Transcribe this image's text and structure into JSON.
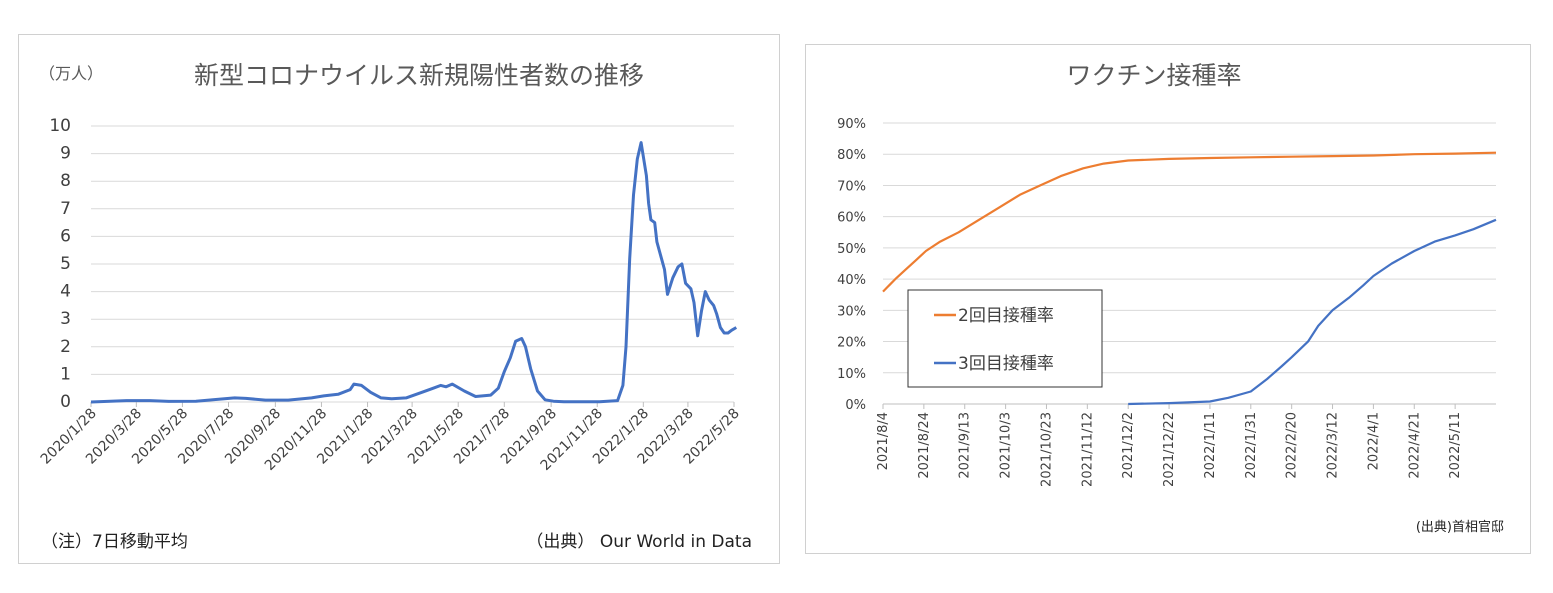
{
  "colors": {
    "blue": "#4472c4",
    "orange": "#ed7d31",
    "grid": "#d9d9d9",
    "text": "#595959"
  },
  "left_chart": {
    "unit_label": "（万人）",
    "note": "（注）7日移動平均",
    "source": "（出典） Our World in Data"
  },
  "right_chart": {
    "source": "(出典)首相官邸"
  },
  "chart_data": [
    {
      "type": "line",
      "title": "新型コロナウイルス新規陽性者数の推移",
      "xlabel": "",
      "ylabel": "（万人）",
      "ylim": [
        0,
        10
      ],
      "yticks": [
        "0",
        "1",
        "2",
        "3",
        "4",
        "5",
        "6",
        "7",
        "8",
        "9",
        "10"
      ],
      "xticks": [
        "2020/1/28",
        "2020/3/28",
        "2020/5/28",
        "2020/7/28",
        "2020/9/28",
        "2020/11/28",
        "2021/1/28",
        "2021/3/28",
        "2021/5/28",
        "2021/7/28",
        "2021/9/28",
        "2021/11/28",
        "2022/1/28",
        "2022/3/28",
        "2022/5/28"
      ],
      "grid": true,
      "series": [
        {
          "color": "#4472c4",
          "x": [
            "2020/1/28",
            "2020/3/15",
            "2020/4/15",
            "2020/5/10",
            "2020/6/15",
            "2020/7/15",
            "2020/8/5",
            "2020/8/20",
            "2020/9/15",
            "2020/10/15",
            "2020/11/15",
            "2020/12/1",
            "2020/12/20",
            "2021/1/5",
            "2021/1/10",
            "2021/1/20",
            "2021/2/1",
            "2021/2/15",
            "2021/3/1",
            "2021/3/20",
            "2021/4/10",
            "2021/4/25",
            "2021/5/5",
            "2021/5/12",
            "2021/5/20",
            "2021/6/5",
            "2021/6/20",
            "2021/7/10",
            "2021/7/20",
            "2021/7/28",
            "2021/8/5",
            "2021/8/12",
            "2021/8/20",
            "2021/8/25",
            "2021/9/1",
            "2021/9/10",
            "2021/9/20",
            "2021/10/1",
            "2021/10/15",
            "2021/11/1",
            "2021/12/1",
            "2021/12/25",
            "2022/1/1",
            "2022/1/5",
            "2022/1/10",
            "2022/1/15",
            "2022/1/20",
            "2022/1/25",
            "2022/2/1",
            "2022/2/4",
            "2022/2/7",
            "2022/2/12",
            "2022/2/15",
            "2022/2/20",
            "2022/2/25",
            "2022/3/1",
            "2022/3/8",
            "2022/3/15",
            "2022/3/20",
            "2022/3/25",
            "2022/4/1",
            "2022/4/5",
            "2022/4/10",
            "2022/4/15",
            "2022/4/20",
            "2022/4/25",
            "2022/5/1",
            "2022/5/5",
            "2022/5/10",
            "2022/5/15",
            "2022/5/20",
            "2022/5/25",
            "2022/5/31"
          ],
          "values": [
            0,
            0.05,
            0.05,
            0.02,
            0.03,
            0.1,
            0.15,
            0.13,
            0.07,
            0.07,
            0.15,
            0.22,
            0.28,
            0.45,
            0.65,
            0.6,
            0.35,
            0.15,
            0.12,
            0.15,
            0.35,
            0.5,
            0.6,
            0.55,
            0.65,
            0.4,
            0.2,
            0.25,
            0.5,
            1.1,
            1.6,
            2.2,
            2.3,
            2.0,
            1.2,
            0.4,
            0.08,
            0.03,
            0.01,
            0.01,
            0.01,
            0.05,
            0.6,
            2.0,
            5.2,
            7.5,
            8.8,
            9.4,
            8.2,
            7.2,
            6.6,
            6.5,
            5.8,
            5.3,
            4.8,
            3.9,
            4.5,
            4.9,
            5.0,
            4.3,
            4.1,
            3.6,
            2.4,
            3.3,
            4.0,
            3.7,
            3.5,
            3.2,
            2.7,
            2.5,
            2.5,
            2.6,
            2.7
          ]
        }
      ]
    },
    {
      "type": "line",
      "title": "ワクチン接種率",
      "xlabel": "",
      "ylabel": "",
      "ylim": [
        0,
        90
      ],
      "yticks": [
        "0%",
        "10%",
        "20%",
        "30%",
        "40%",
        "50%",
        "60%",
        "70%",
        "80%",
        "90%"
      ],
      "xticks": [
        "2021/8/4",
        "2021/8/24",
        "2021/9/13",
        "2021/10/3",
        "2021/10/23",
        "2021/11/12",
        "2021/12/2",
        "2021/12/22",
        "2022/1/11",
        "2022/1/31",
        "2022/2/20",
        "2022/3/12",
        "2022/4/1",
        "2022/4/21",
        "2022/5/11"
      ],
      "grid": true,
      "legend": "left",
      "series": [
        {
          "name": "2回目接種率",
          "color": "#ed7d31",
          "x": [
            "2021/8/4",
            "2021/8/10",
            "2021/8/15",
            "2021/8/20",
            "2021/8/25",
            "2021/9/1",
            "2021/9/10",
            "2021/9/20",
            "2021/9/30",
            "2021/10/10",
            "2021/10/20",
            "2021/10/30",
            "2021/11/10",
            "2021/11/20",
            "2021/12/2",
            "2021/12/22",
            "2022/1/11",
            "2022/1/31",
            "2022/2/20",
            "2022/3/12",
            "2022/4/1",
            "2022/4/21",
            "2022/5/11",
            "2022/5/31"
          ],
          "values": [
            36,
            40,
            43,
            46,
            49,
            52,
            55,
            59,
            63,
            67,
            70,
            73,
            75.5,
            77,
            78,
            78.5,
            78.8,
            79,
            79.2,
            79.4,
            79.6,
            80,
            80.2,
            80.5
          ]
        },
        {
          "name": "3回目接種率",
          "color": "#4472c4",
          "x": [
            "2021/12/2",
            "2021/12/22",
            "2022/1/11",
            "2022/1/20",
            "2022/1/31",
            "2022/2/8",
            "2022/2/15",
            "2022/2/20",
            "2022/2/28",
            "2022/3/5",
            "2022/3/12",
            "2022/3/20",
            "2022/3/27",
            "2022/4/1",
            "2022/4/10",
            "2022/4/21",
            "2022/5/1",
            "2022/5/11",
            "2022/5/20",
            "2022/5/31"
          ],
          "values": [
            0,
            0.3,
            0.8,
            2,
            4,
            8,
            12,
            15,
            20,
            25,
            30,
            34,
            38,
            41,
            45,
            49,
            52,
            54,
            56,
            59
          ]
        }
      ]
    }
  ]
}
